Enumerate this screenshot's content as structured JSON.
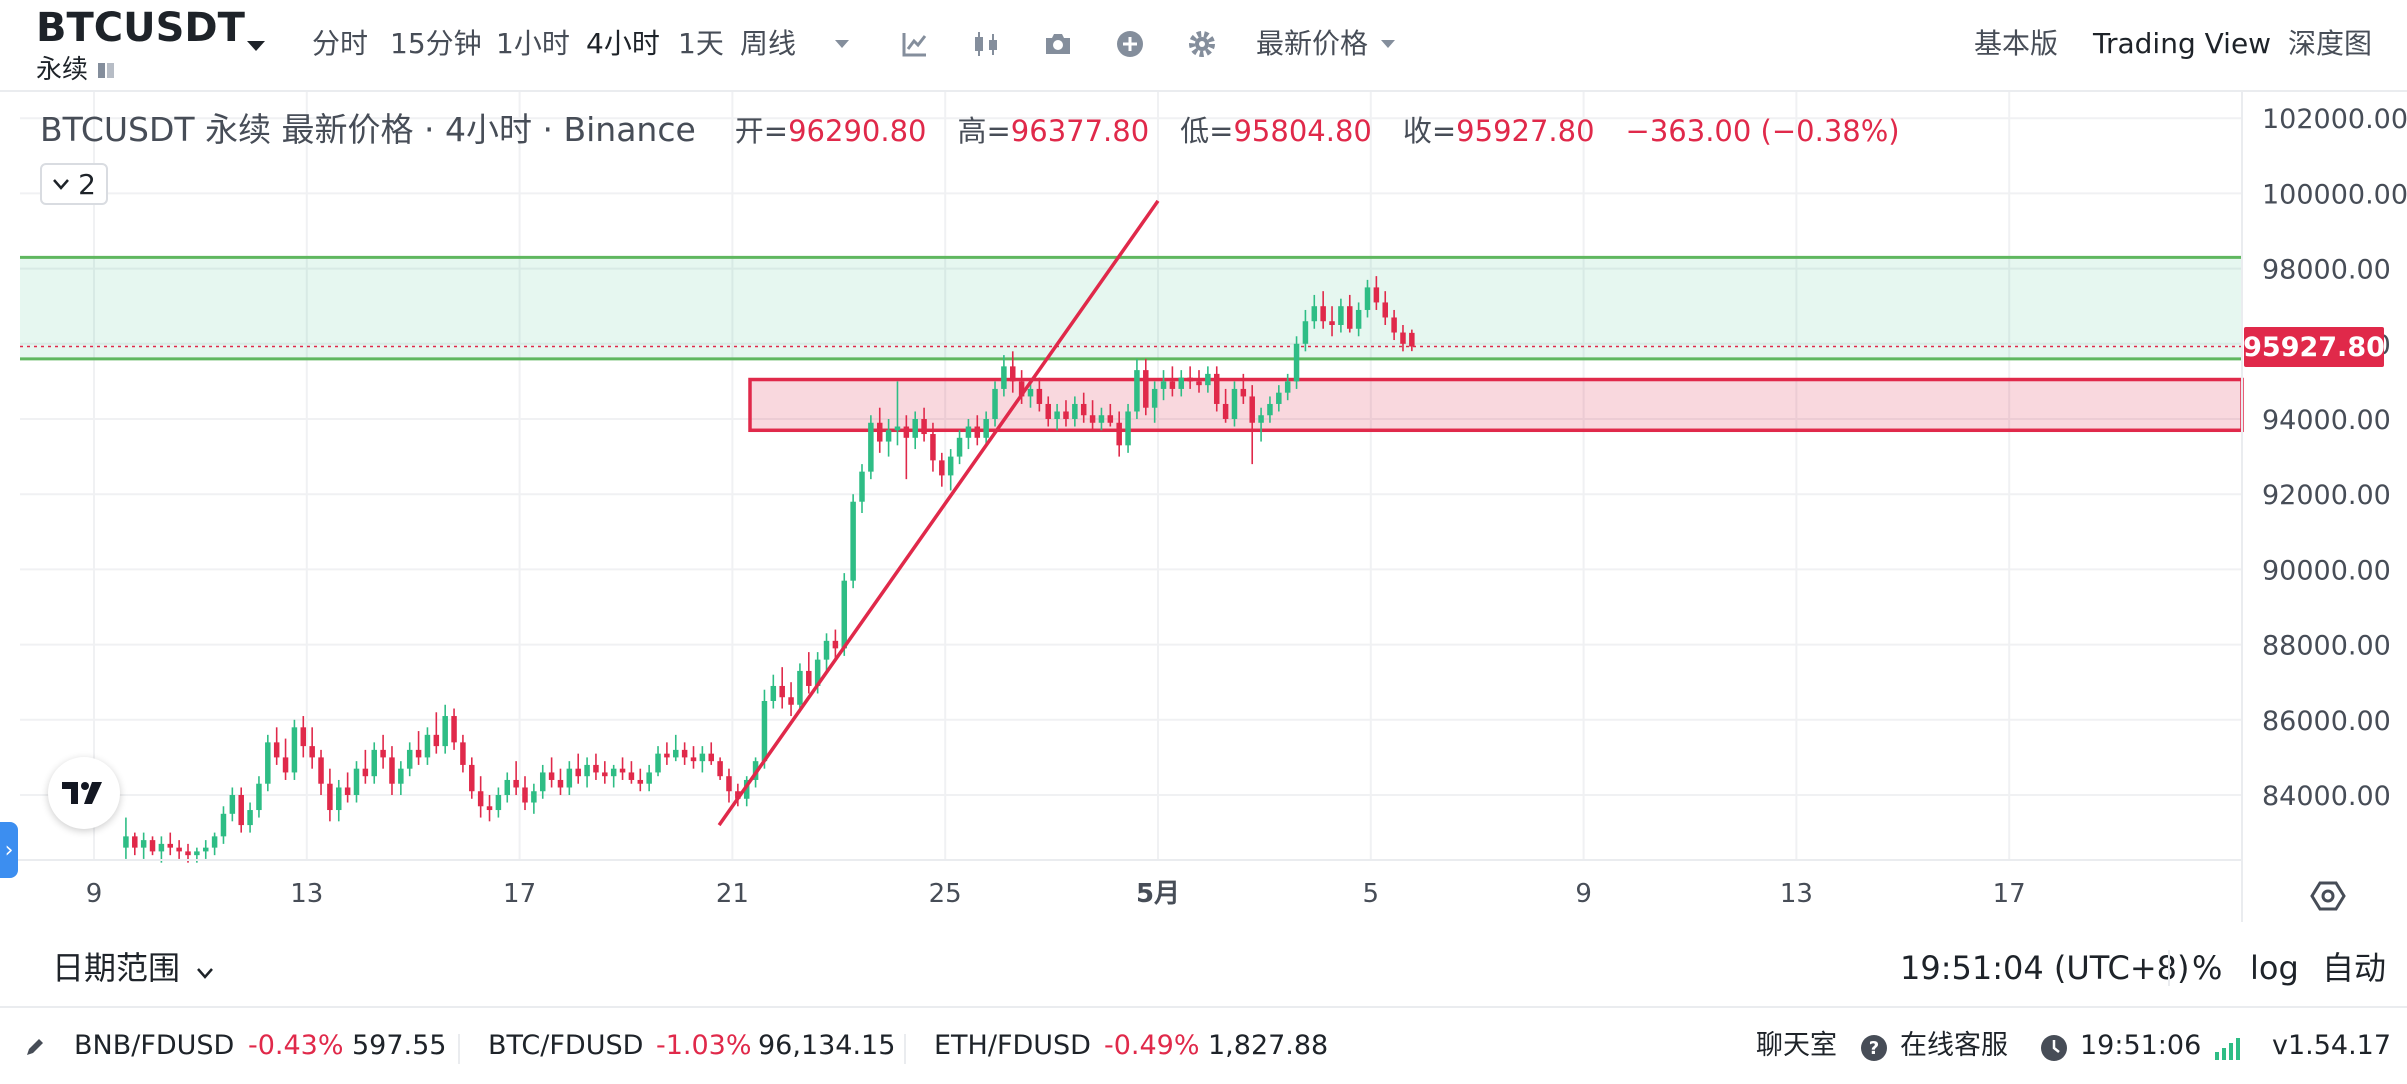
{
  "toolbar": {
    "symbol": "BTCUSDT",
    "contract_type": "永续",
    "intervals": [
      "分时",
      "15分钟",
      "1小时",
      "4小时",
      "1天",
      "周线"
    ],
    "active_interval": "4小时",
    "price_type": "最新价格",
    "views": [
      "基本版",
      "Trading View",
      "深度图"
    ],
    "active_view": "Trading View"
  },
  "legend": {
    "title": "BTCUSDT 永续 最新价格 · 4小时 · Binance",
    "open_label": "开=",
    "open": "96290.80",
    "high_label": "高=",
    "high": "96377.80",
    "low_label": "低=",
    "low": "95804.80",
    "close_label": "收=",
    "close": "95927.80",
    "change": "−363.00 (−0.38%)",
    "indicator_count": "2"
  },
  "chart_data": {
    "type": "candlestick",
    "y_ticks": [
      "102000.00",
      "100000.00",
      "98000.00",
      "96000.00",
      "94000.00",
      "92000.00",
      "90000.00",
      "88000.00",
      "86000.00",
      "84000.00"
    ],
    "ylim": [
      82200,
      102800
    ],
    "x_ticks": [
      "9",
      "13",
      "17",
      "21",
      "25",
      "5月",
      "5",
      "9",
      "13",
      "17"
    ],
    "current_price": "95927.80",
    "up_color": "#2ebd85",
    "down_color": "#e0294a",
    "zones": [
      {
        "low": 95600,
        "high": 98300,
        "color": "#2ebd85"
      },
      {
        "low": 93700,
        "high": 95050,
        "color": "#e0294a"
      }
    ],
    "trendline": {
      "start": [
        20.75,
        83200
      ],
      "end": [
        29.0,
        99800
      ]
    },
    "candles_start_day": 9.6,
    "candle_step_days": 0.1667,
    "candles": [
      [
        82600,
        83400,
        82300,
        82900
      ],
      [
        82900,
        83000,
        82400,
        82600
      ],
      [
        82600,
        83000,
        82300,
        82800
      ],
      [
        82800,
        82900,
        82400,
        82500
      ],
      [
        82500,
        82900,
        82200,
        82700
      ],
      [
        82700,
        83000,
        82400,
        82600
      ],
      [
        82600,
        82800,
        82300,
        82500
      ],
      [
        82500,
        82700,
        82200,
        82400
      ],
      [
        82400,
        82600,
        82200,
        82500
      ],
      [
        82500,
        82800,
        82300,
        82600
      ],
      [
        82600,
        83000,
        82400,
        82900
      ],
      [
        82900,
        83700,
        82700,
        83500
      ],
      [
        83500,
        84200,
        83300,
        84000
      ],
      [
        84000,
        84200,
        83000,
        83200
      ],
      [
        83200,
        83800,
        83000,
        83600
      ],
      [
        83600,
        84500,
        83400,
        84300
      ],
      [
        84300,
        85600,
        84100,
        85400
      ],
      [
        85400,
        85800,
        84800,
        85000
      ],
      [
        85000,
        85500,
        84400,
        84600
      ],
      [
        84600,
        86000,
        84400,
        85800
      ],
      [
        85800,
        86100,
        85000,
        85300
      ],
      [
        85300,
        85800,
        84700,
        85000
      ],
      [
        85000,
        85200,
        84000,
        84300
      ],
      [
        84300,
        84700,
        83300,
        83600
      ],
      [
        83600,
        84400,
        83300,
        84200
      ],
      [
        84200,
        84600,
        83800,
        84000
      ],
      [
        84000,
        84900,
        83800,
        84700
      ],
      [
        84700,
        85200,
        84300,
        84500
      ],
      [
        84500,
        85400,
        84300,
        85200
      ],
      [
        85200,
        85600,
        84700,
        85000
      ],
      [
        85000,
        85300,
        84000,
        84300
      ],
      [
        84300,
        84900,
        84000,
        84700
      ],
      [
        84700,
        85400,
        84500,
        85200
      ],
      [
        85200,
        85700,
        84800,
        85000
      ],
      [
        85000,
        85800,
        84800,
        85600
      ],
      [
        85600,
        86200,
        85100,
        85300
      ],
      [
        85300,
        86400,
        85100,
        86100
      ],
      [
        86100,
        86300,
        85200,
        85400
      ],
      [
        85400,
        85600,
        84600,
        84800
      ],
      [
        84800,
        85000,
        83900,
        84100
      ],
      [
        84100,
        84500,
        83400,
        83700
      ],
      [
        83700,
        84000,
        83300,
        83600
      ],
      [
        83600,
        84200,
        83400,
        84000
      ],
      [
        84000,
        84600,
        83800,
        84400
      ],
      [
        84400,
        84900,
        84000,
        84200
      ],
      [
        84200,
        84500,
        83600,
        83800
      ],
      [
        83800,
        84300,
        83500,
        84100
      ],
      [
        84100,
        84800,
        83900,
        84600
      ],
      [
        84600,
        85000,
        84200,
        84400
      ],
      [
        84400,
        84700,
        84000,
        84200
      ],
      [
        84200,
        84900,
        84000,
        84700
      ],
      [
        84700,
        85100,
        84300,
        84500
      ],
      [
        84500,
        85000,
        84200,
        84800
      ],
      [
        84800,
        85100,
        84400,
        84600
      ],
      [
        84600,
        84900,
        84300,
        84500
      ],
      [
        84500,
        84800,
        84200,
        84700
      ],
      [
        84700,
        85000,
        84400,
        84600
      ],
      [
        84600,
        84900,
        84300,
        84400
      ],
      [
        84400,
        84700,
        84100,
        84300
      ],
      [
        84300,
        84800,
        84100,
        84600
      ],
      [
        84600,
        85300,
        84500,
        85100
      ],
      [
        85100,
        85400,
        84800,
        85000
      ],
      [
        85000,
        85600,
        84900,
        85200
      ],
      [
        85200,
        85400,
        84800,
        85000
      ],
      [
        85000,
        85300,
        84700,
        84900
      ],
      [
        84900,
        85300,
        84600,
        85100
      ],
      [
        85100,
        85400,
        84800,
        84900
      ],
      [
        84900,
        85000,
        84400,
        84500
      ],
      [
        84500,
        84700,
        83800,
        84100
      ],
      [
        84100,
        84300,
        83700,
        83900
      ],
      [
        83900,
        84500,
        83700,
        84400
      ],
      [
        84400,
        85000,
        84200,
        84900
      ],
      [
        84900,
        86800,
        84700,
        86500
      ],
      [
        86500,
        87200,
        86300,
        86900
      ],
      [
        86900,
        87400,
        86300,
        86600
      ],
      [
        86600,
        87000,
        86100,
        86400
      ],
      [
        86400,
        87500,
        86200,
        87300
      ],
      [
        87300,
        87800,
        86700,
        86900
      ],
      [
        86900,
        87800,
        86700,
        87600
      ],
      [
        87600,
        88300,
        87300,
        88100
      ],
      [
        88100,
        88400,
        87600,
        87900
      ],
      [
        87900,
        89900,
        87700,
        89700
      ],
      [
        89700,
        92000,
        89500,
        91800
      ],
      [
        91800,
        92800,
        91500,
        92600
      ],
      [
        92600,
        94100,
        92400,
        93900
      ],
      [
        93900,
        94300,
        93100,
        93400
      ],
      [
        93400,
        94000,
        93000,
        93700
      ],
      [
        93700,
        95000,
        93300,
        93800
      ],
      [
        93800,
        94100,
        92400,
        93500
      ],
      [
        93500,
        94200,
        93200,
        94000
      ],
      [
        94000,
        94300,
        93400,
        93600
      ],
      [
        93600,
        93900,
        92600,
        92900
      ],
      [
        92900,
        93100,
        92200,
        92500
      ],
      [
        92500,
        93200,
        92100,
        93000
      ],
      [
        93000,
        93700,
        92800,
        93500
      ],
      [
        93500,
        94000,
        93200,
        93800
      ],
      [
        93800,
        94100,
        93300,
        93500
      ],
      [
        93500,
        94200,
        93300,
        94000
      ],
      [
        94000,
        95000,
        93800,
        94800
      ],
      [
        94800,
        95700,
        94600,
        95400
      ],
      [
        95400,
        95800,
        94700,
        95000
      ],
      [
        95000,
        95300,
        94400,
        94600
      ],
      [
        94600,
        95000,
        94300,
        94800
      ],
      [
        94800,
        95100,
        94200,
        94400
      ],
      [
        94400,
        94600,
        93800,
        94000
      ],
      [
        94000,
        94400,
        93700,
        94200
      ],
      [
        94200,
        94500,
        93800,
        94000
      ],
      [
        94000,
        94600,
        93800,
        94400
      ],
      [
        94400,
        94700,
        93900,
        94100
      ],
      [
        94100,
        94500,
        93700,
        93900
      ],
      [
        93900,
        94300,
        93700,
        94100
      ],
      [
        94100,
        94400,
        93800,
        93900
      ],
      [
        93900,
        94200,
        93000,
        93300
      ],
      [
        93300,
        94400,
        93100,
        94200
      ],
      [
        94200,
        95600,
        94000,
        95300
      ],
      [
        95300,
        95600,
        94100,
        94300
      ],
      [
        94300,
        95000,
        93900,
        94800
      ],
      [
        94800,
        95300,
        94500,
        95000
      ],
      [
        95000,
        95400,
        94600,
        94800
      ],
      [
        94800,
        95300,
        94600,
        95100
      ],
      [
        95100,
        95400,
        94800,
        95000
      ],
      [
        95000,
        95300,
        94700,
        94900
      ],
      [
        94900,
        95400,
        94700,
        95200
      ],
      [
        95200,
        95400,
        94200,
        94400
      ],
      [
        94400,
        94800,
        93900,
        94000
      ],
      [
        94000,
        95000,
        93800,
        94800
      ],
      [
        94800,
        95200,
        94400,
        94600
      ],
      [
        94600,
        94900,
        92800,
        93900
      ],
      [
        93900,
        94300,
        93400,
        94100
      ],
      [
        94100,
        94600,
        93900,
        94400
      ],
      [
        94400,
        94900,
        94200,
        94700
      ],
      [
        94700,
        95200,
        94500,
        95000
      ],
      [
        95000,
        96200,
        94800,
        96000
      ],
      [
        96000,
        96900,
        95800,
        96600
      ],
      [
        96600,
        97300,
        96400,
        97000
      ],
      [
        97000,
        97400,
        96400,
        96600
      ],
      [
        96600,
        97000,
        96200,
        96500
      ],
      [
        96500,
        97200,
        96300,
        97000
      ],
      [
        97000,
        97300,
        96300,
        96400
      ],
      [
        96400,
        97100,
        96200,
        96900
      ],
      [
        96900,
        97700,
        96700,
        97500
      ],
      [
        97500,
        97800,
        96900,
        97100
      ],
      [
        97100,
        97400,
        96500,
        96700
      ],
      [
        96700,
        96900,
        96100,
        96300
      ],
      [
        96300,
        96500,
        95800,
        96000
      ],
      [
        96290.8,
        96377.8,
        95804.8,
        95927.8
      ]
    ]
  },
  "bottom_bar": {
    "date_range": "日期范围",
    "time": "19:51:04 (UTC+8)",
    "percent": "%",
    "log": "log",
    "auto": "自动"
  },
  "status_bar": {
    "tickers": [
      {
        "pair": "BNB/FDUSD",
        "change": "-0.43%",
        "price": "597.55"
      },
      {
        "pair": "BTC/FDUSD",
        "change": "-1.03%",
        "price": "96,134.15"
      },
      {
        "pair": "ETH/FDUSD",
        "change": "-0.49%",
        "price": "1,827.88"
      }
    ],
    "chat": "聊天室",
    "support": "在线客服",
    "time": "19:51:06",
    "version": "v1.54.17"
  }
}
